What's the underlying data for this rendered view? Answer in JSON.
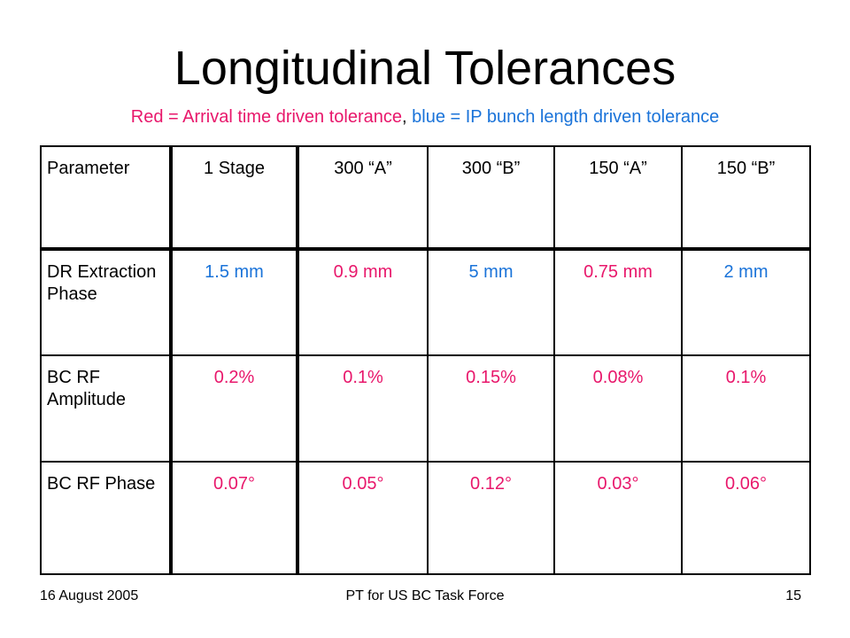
{
  "slide": {
    "title": "Longitudinal Tolerances",
    "subtitle": {
      "red_part": "Red = Arrival time driven tolerance",
      "separator": ", ",
      "blue_part": "blue = IP bunch length driven tolerance"
    }
  },
  "colors": {
    "red": "#e8176b",
    "blue": "#1a73d9"
  },
  "table": {
    "headers": [
      "Parameter",
      "1 Stage",
      "300 “A”",
      "300 “B”",
      "150 “A”",
      "150 “B”"
    ],
    "rows": [
      {
        "parameter": "DR Extraction Phase",
        "values": [
          "1.5 mm",
          "0.9 mm",
          "5 mm",
          "0.75 mm",
          "2 mm"
        ]
      },
      {
        "parameter": "BC RF Amplitude",
        "values": [
          "0.2%",
          "0.1%",
          "0.15%",
          "0.08%",
          "0.1%"
        ]
      },
      {
        "parameter": "BC RF Phase",
        "values": [
          "0.07°",
          "0.05°",
          "0.12°",
          "0.03°",
          "0.06°"
        ]
      }
    ]
  },
  "footer": {
    "date": "16 August 2005",
    "center": "PT for US BC Task Force",
    "page_number": "15"
  }
}
